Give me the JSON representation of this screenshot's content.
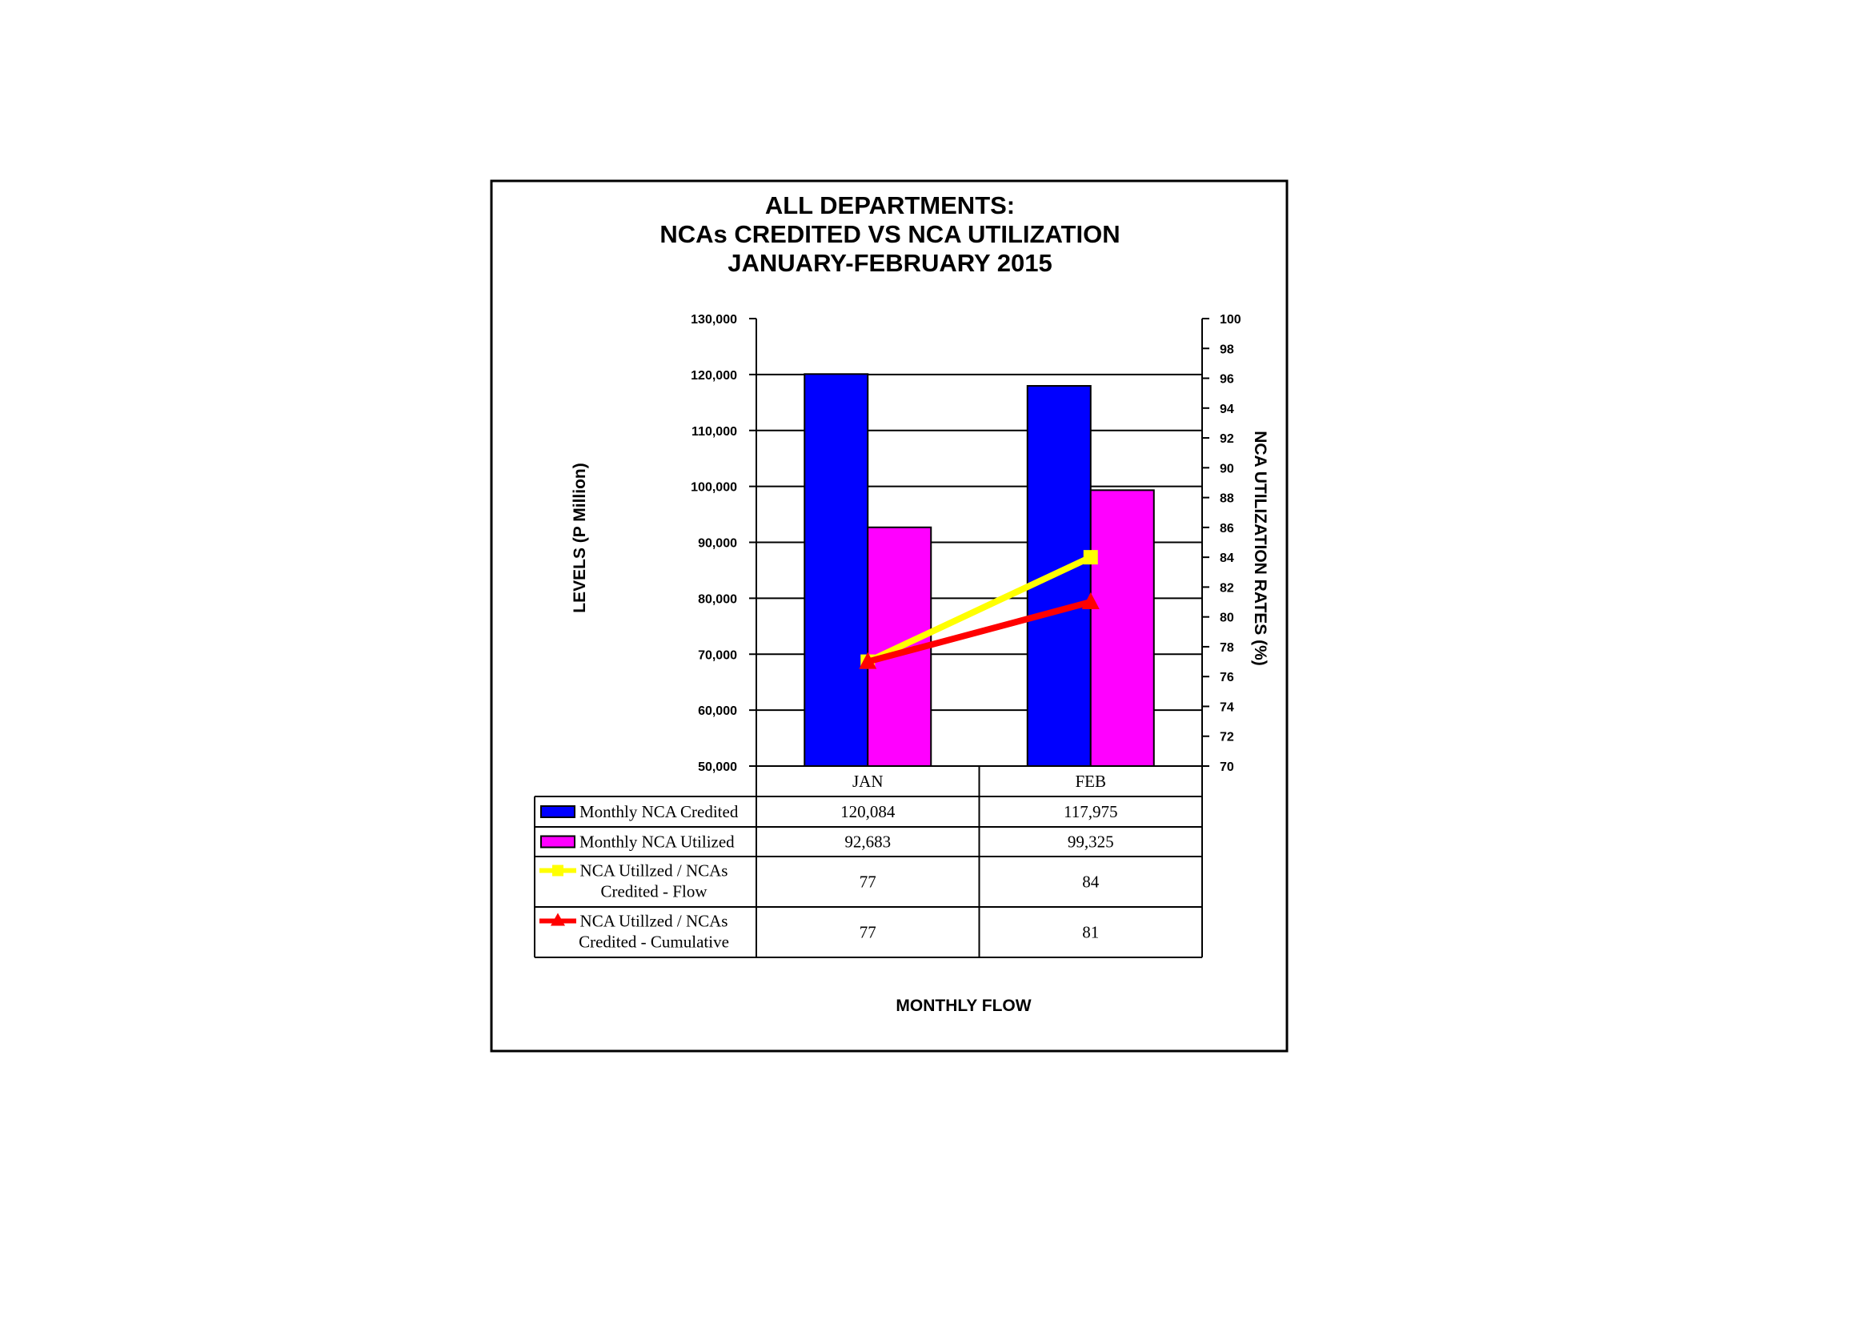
{
  "chart_data": {
    "type": "bar",
    "title_lines": [
      "ALL DEPARTMENTS:",
      "NCAs CREDITED VS NCA UTILIZATION",
      "JANUARY-FEBRUARY 2015"
    ],
    "xlabel": "MONTHLY FLOW",
    "ylabel": "LEVELS (P Million)",
    "y2label": "NCA UTILIZATION RATES (%)",
    "categories": [
      "JAN",
      "FEB"
    ],
    "ylim": [
      50000,
      130000
    ],
    "y_ticks": [
      "50,000",
      "60,000",
      "70,000",
      "80,000",
      "90,000",
      "100,000",
      "110,000",
      "120,000",
      "130,000"
    ],
    "y2lim": [
      70,
      100
    ],
    "y2_ticks": [
      "70",
      "72",
      "74",
      "76",
      "78",
      "80",
      "82",
      "84",
      "86",
      "88",
      "90",
      "92",
      "94",
      "96",
      "98",
      "100"
    ],
    "grid": true,
    "bar_series": [
      {
        "name": "Monthly NCA Credited",
        "values": [
          120084,
          117975
        ],
        "labels": [
          "120,084",
          "117,975"
        ],
        "color": "#0000FF"
      },
      {
        "name": "Monthly NCA Utilized",
        "values": [
          92683,
          99325
        ],
        "labels": [
          "92,683",
          "99,325"
        ],
        "color": "#FF00FF"
      }
    ],
    "line_series": [
      {
        "name_lines": [
          "NCA Utillzed / NCAs",
          "Credited - Flow"
        ],
        "values": [
          77,
          84
        ],
        "labels": [
          "77",
          "84"
        ],
        "color": "#FFFF00",
        "marker": "square"
      },
      {
        "name_lines": [
          "NCA Utillzed / NCAs",
          "Credited - Cumulative"
        ],
        "values": [
          77,
          81
        ],
        "labels": [
          "77",
          "81"
        ],
        "color": "#FF0000",
        "marker": "triangle"
      }
    ]
  }
}
